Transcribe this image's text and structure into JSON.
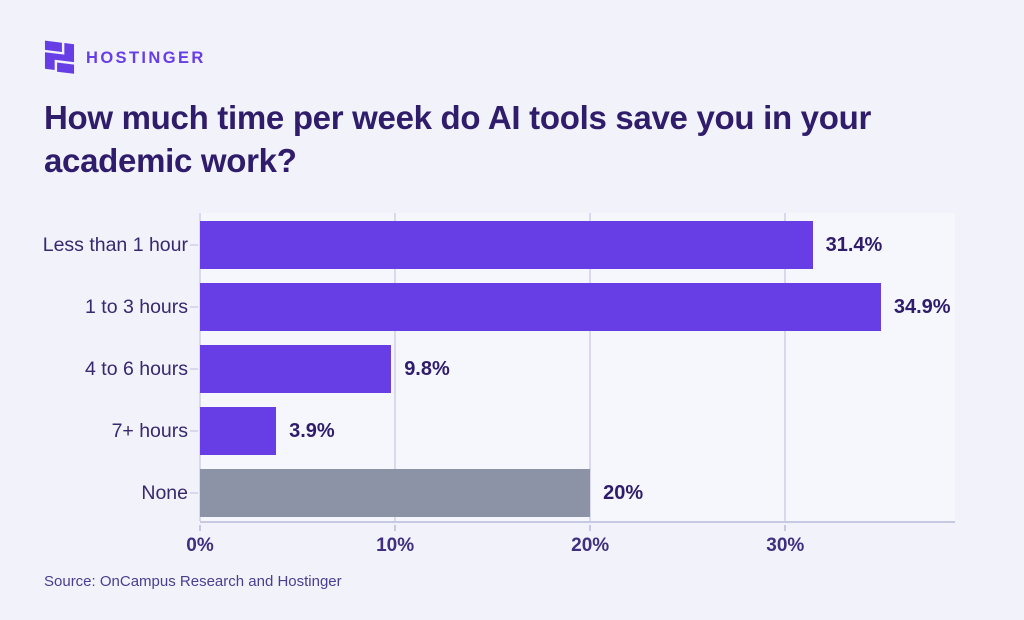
{
  "brand": {
    "name": "HOSTINGER",
    "logo_color": "#673de6"
  },
  "title_lines": [
    "How much time per week do AI tools save you in your",
    "academic work?"
  ],
  "source": "Source: OnCampus Research and Hostinger",
  "colors": {
    "background": "#f2f2fb",
    "plot_background": "#f6f6fd",
    "bar_purple": "#673de6",
    "bar_gray": "#8d93a7",
    "title_text": "#2f1c6a",
    "axis_line": "#c7c8e2",
    "gridline": "#d9d9ee"
  },
  "chart_data": {
    "type": "bar",
    "orientation": "horizontal",
    "title": "How much time per week do AI tools save you in your academic work?",
    "categories": [
      "Less than 1 hour",
      "1 to 3 hours",
      "4 to 6 hours",
      "7+ hours",
      "None"
    ],
    "values": [
      31.4,
      34.9,
      9.8,
      3.9,
      20
    ],
    "value_labels": [
      "31.4%",
      "34.9%",
      "9.8%",
      "3.9%",
      "20%"
    ],
    "bar_colors": [
      "#673de6",
      "#673de6",
      "#673de6",
      "#673de6",
      "#8d93a7"
    ],
    "x_ticks": [
      "0%",
      "10%",
      "20%",
      "30%"
    ],
    "x_tick_values": [
      0,
      10,
      20,
      30
    ],
    "xlim": [
      0,
      38.7
    ],
    "grid": true,
    "legend": null,
    "xlabel": "",
    "ylabel": ""
  }
}
